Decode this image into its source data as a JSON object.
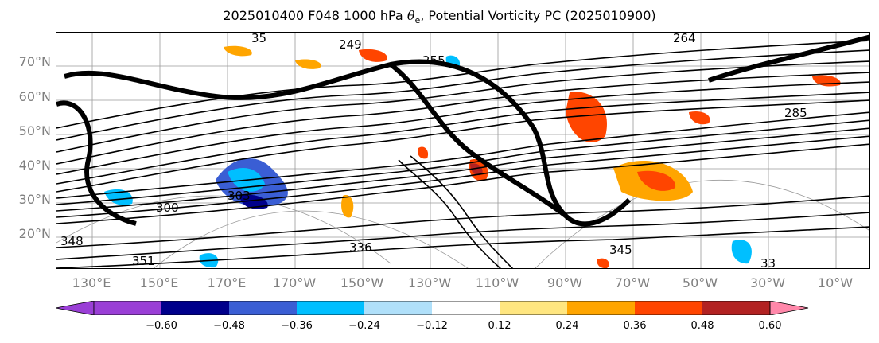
{
  "header": {
    "title_prefix": "2025010400 F048 1000 hPa ",
    "theta_symbol": "θ",
    "theta_sub": "e",
    "title_suffix": ", Potential Vorticity PC (2025010900)"
  },
  "map": {
    "lat_labels": [
      "70°N",
      "60°N",
      "50°N",
      "40°N",
      "30°N",
      "20°N"
    ],
    "lon_labels": [
      "130°E",
      "150°E",
      "170°E",
      "170°W",
      "150°W",
      "130°W",
      "110°W",
      "90°W",
      "70°W",
      "50°W",
      "30°W",
      "10°W"
    ],
    "contour_labels": [
      "249",
      "264",
      "255",
      "285",
      "303",
      "300",
      "336",
      "345",
      "351",
      "348",
      "33",
      "35"
    ]
  },
  "colorbar": {
    "ticks": [
      "−0.60",
      "−0.48",
      "−0.36",
      "−0.24",
      "−0.12",
      "0.12",
      "0.24",
      "0.36",
      "0.48",
      "0.60"
    ],
    "colors": {
      "under": "#9a3fd6",
      "levels": [
        "#9a3fd6",
        "#00008b",
        "#3a5ed4",
        "#00bfff",
        "#b0e0fa",
        "#ffffff",
        "#ffe680",
        "#ffa500",
        "#ff4500",
        "#b22222",
        "#ff88aa"
      ]
    }
  }
}
